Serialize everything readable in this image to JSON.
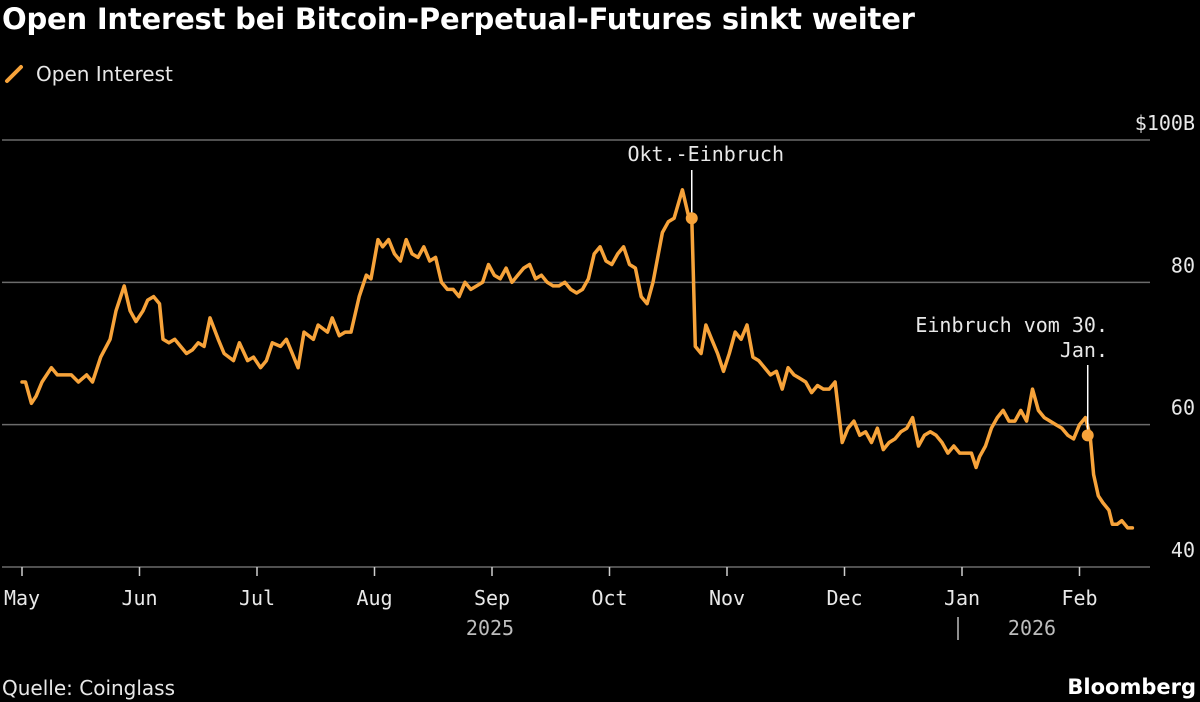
{
  "title": "Open Interest bei Bitcoin-Perpetual-Futures sinkt weiter",
  "source": "Quelle: Coinglass",
  "brand": "Bloomberg",
  "colors": {
    "line": "#f7a33a",
    "background": "#000000",
    "grid": "#6b6b6b",
    "text": "#e8e8e8"
  },
  "chart_data": {
    "type": "line",
    "title": "Open Interest bei Bitcoin-Perpetual-Futures sinkt weiter",
    "series": [
      {
        "name": "Open Interest",
        "color": "#f7a33a"
      }
    ],
    "ylim": [
      40,
      100
    ],
    "y_ticks": [
      {
        "value": 100,
        "label": "$100B"
      },
      {
        "value": 80,
        "label": "80"
      },
      {
        "value": 60,
        "label": "60"
      },
      {
        "value": 40,
        "label": "40"
      }
    ],
    "x_ticks": [
      "May",
      "Jun",
      "Jul",
      "Aug",
      "Sep",
      "Oct",
      "Nov",
      "Dec",
      "Jan",
      "Feb"
    ],
    "year_labels": [
      "2025",
      "2026"
    ],
    "points": [
      [
        0.0,
        66
      ],
      [
        0.03,
        66
      ],
      [
        0.08,
        63
      ],
      [
        0.12,
        64
      ],
      [
        0.17,
        66
      ],
      [
        0.25,
        68
      ],
      [
        0.3,
        67
      ],
      [
        0.35,
        67
      ],
      [
        0.42,
        67
      ],
      [
        0.48,
        66
      ],
      [
        0.55,
        67
      ],
      [
        0.6,
        66
      ],
      [
        0.67,
        69.5
      ],
      [
        0.75,
        72
      ],
      [
        0.8,
        76
      ],
      [
        0.87,
        79.5
      ],
      [
        0.92,
        76
      ],
      [
        0.97,
        74.5
      ],
      [
        1.03,
        76
      ],
      [
        1.07,
        77.5
      ],
      [
        1.12,
        78
      ],
      [
        1.17,
        77
      ],
      [
        1.2,
        72
      ],
      [
        1.25,
        71.5
      ],
      [
        1.3,
        72
      ],
      [
        1.35,
        71
      ],
      [
        1.4,
        70
      ],
      [
        1.45,
        70.5
      ],
      [
        1.5,
        71.5
      ],
      [
        1.55,
        71
      ],
      [
        1.6,
        75
      ],
      [
        1.67,
        72
      ],
      [
        1.72,
        70
      ],
      [
        1.8,
        69
      ],
      [
        1.85,
        71.5
      ],
      [
        1.92,
        69
      ],
      [
        1.97,
        69.5
      ],
      [
        2.03,
        68
      ],
      [
        2.08,
        69
      ],
      [
        2.13,
        71.5
      ],
      [
        2.2,
        71
      ],
      [
        2.25,
        72
      ],
      [
        2.3,
        70
      ],
      [
        2.35,
        68
      ],
      [
        2.4,
        73
      ],
      [
        2.48,
        72
      ],
      [
        2.52,
        74
      ],
      [
        2.6,
        73
      ],
      [
        2.64,
        75
      ],
      [
        2.7,
        72.5
      ],
      [
        2.75,
        73
      ],
      [
        2.8,
        73
      ],
      [
        2.87,
        78
      ],
      [
        2.93,
        81
      ],
      [
        2.97,
        80.5
      ],
      [
        3.03,
        86
      ],
      [
        3.07,
        85
      ],
      [
        3.12,
        86
      ],
      [
        3.17,
        84
      ],
      [
        3.22,
        83
      ],
      [
        3.27,
        86
      ],
      [
        3.32,
        84
      ],
      [
        3.37,
        83.5
      ],
      [
        3.42,
        85
      ],
      [
        3.47,
        83
      ],
      [
        3.52,
        83.5
      ],
      [
        3.57,
        80
      ],
      [
        3.62,
        79
      ],
      [
        3.67,
        79
      ],
      [
        3.72,
        78
      ],
      [
        3.77,
        80
      ],
      [
        3.82,
        79
      ],
      [
        3.87,
        79.5
      ],
      [
        3.92,
        80
      ],
      [
        3.97,
        82.5
      ],
      [
        4.02,
        81
      ],
      [
        4.07,
        80.5
      ],
      [
        4.12,
        82
      ],
      [
        4.17,
        80
      ],
      [
        4.22,
        81
      ],
      [
        4.27,
        82
      ],
      [
        4.32,
        82.5
      ],
      [
        4.37,
        80.5
      ],
      [
        4.42,
        81
      ],
      [
        4.47,
        80
      ],
      [
        4.52,
        79.5
      ],
      [
        4.57,
        79.5
      ],
      [
        4.62,
        80
      ],
      [
        4.67,
        79
      ],
      [
        4.72,
        78.5
      ],
      [
        4.77,
        79
      ],
      [
        4.82,
        80.5
      ],
      [
        4.87,
        84
      ],
      [
        4.92,
        85
      ],
      [
        4.97,
        83
      ],
      [
        5.02,
        82.5
      ],
      [
        5.07,
        84
      ],
      [
        5.12,
        85
      ],
      [
        5.17,
        82.5
      ],
      [
        5.22,
        82
      ],
      [
        5.27,
        78
      ],
      [
        5.32,
        77
      ],
      [
        5.37,
        80
      ],
      [
        5.45,
        87
      ],
      [
        5.5,
        88.5
      ],
      [
        5.55,
        89
      ],
      [
        5.62,
        93
      ],
      [
        5.67,
        89.5
      ],
      [
        5.7,
        89
      ],
      [
        5.73,
        71
      ],
      [
        5.78,
        70
      ],
      [
        5.82,
        74
      ],
      [
        5.87,
        72
      ],
      [
        5.92,
        70
      ],
      [
        5.97,
        67.5
      ],
      [
        6.02,
        70
      ],
      [
        6.07,
        73
      ],
      [
        6.12,
        72
      ],
      [
        6.17,
        74
      ],
      [
        6.22,
        69.5
      ],
      [
        6.27,
        69
      ],
      [
        6.32,
        68
      ],
      [
        6.37,
        67
      ],
      [
        6.42,
        67.5
      ],
      [
        6.47,
        65
      ],
      [
        6.52,
        68
      ],
      [
        6.57,
        67
      ],
      [
        6.62,
        66.5
      ],
      [
        6.67,
        66
      ],
      [
        6.72,
        64.5
      ],
      [
        6.77,
        65.5
      ],
      [
        6.82,
        65
      ],
      [
        6.87,
        65
      ],
      [
        6.92,
        66
      ],
      [
        6.98,
        57.5
      ],
      [
        7.03,
        59.5
      ],
      [
        7.08,
        60.5
      ],
      [
        7.13,
        58.5
      ],
      [
        7.18,
        59
      ],
      [
        7.23,
        57.5
      ],
      [
        7.28,
        59.5
      ],
      [
        7.33,
        56.5
      ],
      [
        7.38,
        57.5
      ],
      [
        7.43,
        58
      ],
      [
        7.48,
        59
      ],
      [
        7.53,
        59.5
      ],
      [
        7.58,
        61
      ],
      [
        7.63,
        57
      ],
      [
        7.68,
        58.5
      ],
      [
        7.73,
        59
      ],
      [
        7.78,
        58.5
      ],
      [
        7.83,
        57.5
      ],
      [
        7.88,
        56
      ],
      [
        7.93,
        57
      ],
      [
        7.98,
        56
      ],
      [
        8.03,
        56
      ],
      [
        8.08,
        56
      ],
      [
        8.12,
        54
      ],
      [
        8.15,
        55.5
      ],
      [
        8.2,
        57
      ],
      [
        8.25,
        59.5
      ],
      [
        8.3,
        61
      ],
      [
        8.35,
        62
      ],
      [
        8.4,
        60.5
      ],
      [
        8.45,
        60.5
      ],
      [
        8.5,
        62
      ],
      [
        8.55,
        60.5
      ],
      [
        8.6,
        65
      ],
      [
        8.65,
        62
      ],
      [
        8.7,
        61
      ],
      [
        8.75,
        60.5
      ],
      [
        8.8,
        60
      ],
      [
        8.85,
        59.5
      ],
      [
        8.9,
        58.5
      ],
      [
        8.95,
        58
      ],
      [
        9.0,
        60
      ],
      [
        9.05,
        61
      ],
      [
        9.09,
        58.5
      ],
      [
        9.12,
        53
      ],
      [
        9.16,
        50
      ],
      [
        9.2,
        49
      ],
      [
        9.25,
        48
      ],
      [
        9.28,
        46
      ],
      [
        9.32,
        46
      ],
      [
        9.36,
        46.5
      ],
      [
        9.41,
        45.5
      ],
      [
        9.45,
        45.5
      ]
    ],
    "annotations": [
      {
        "label": "Okt.-Einbruch",
        "x": 5.7,
        "y": 89
      },
      {
        "label_lines": [
          "Einbruch vom 30.",
          "Jan."
        ],
        "x": 9.07,
        "y": 58.5
      }
    ]
  }
}
